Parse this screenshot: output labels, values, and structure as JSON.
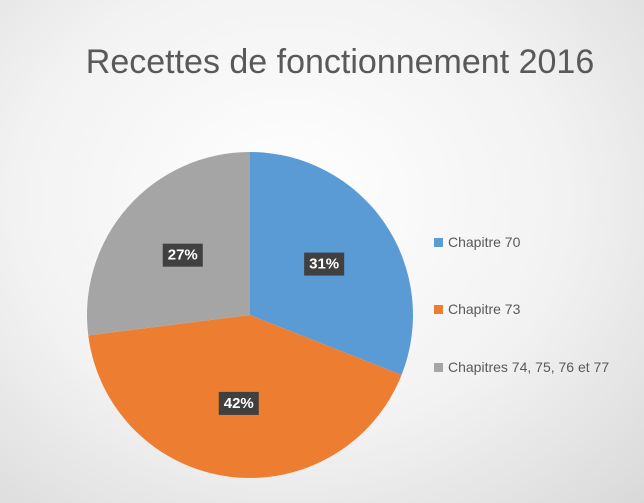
{
  "chart_data": {
    "type": "pie",
    "title": "Recettes de fonctionnement 2016",
    "categories": [
      "Chapitre 70",
      "Chapitre 73",
      "Chapitres 74, 75, 76 et 77"
    ],
    "values": [
      31,
      42,
      27
    ],
    "value_labels": [
      "31%",
      "42%",
      "27%"
    ],
    "colors": [
      "#5b9bd5",
      "#ed7d31",
      "#a5a5a5"
    ],
    "legend": "right"
  }
}
